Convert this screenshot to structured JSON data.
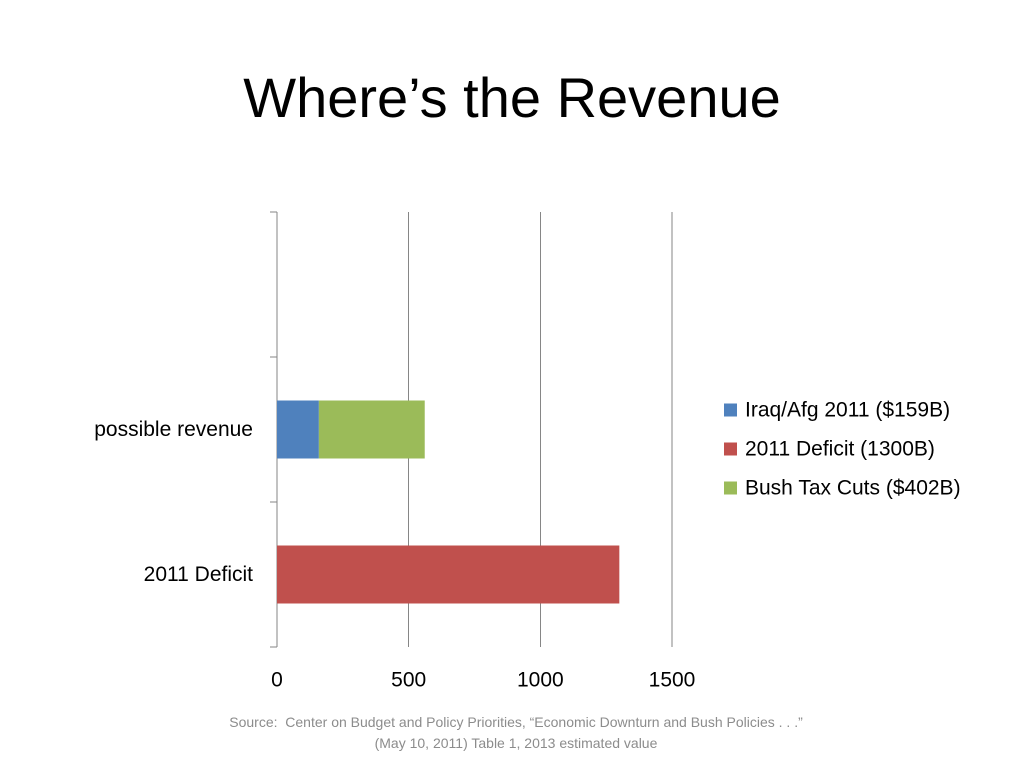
{
  "chart_data": {
    "type": "bar",
    "orientation": "horizontal",
    "stacked": true,
    "title": "Where’s the Revenue",
    "categories": [
      "2011 Deficit",
      "possible revenue",
      ""
    ],
    "series": [
      {
        "name": "Iraq/Afg 2011 ($159B)",
        "color": "#4F81BD",
        "values": [
          0,
          159,
          0
        ]
      },
      {
        "name": "2011 Deficit (1300B)",
        "color": "#C0504D",
        "values": [
          1300,
          0,
          0
        ]
      },
      {
        "name": "Bush Tax Cuts ($402B)",
        "color": "#9BBB59",
        "values": [
          0,
          402,
          0
        ]
      }
    ],
    "value_axis": {
      "range": [
        0,
        1500
      ],
      "ticks": [
        0,
        500,
        1000,
        1500
      ]
    },
    "grid": true,
    "legend": {
      "position": "right"
    }
  },
  "source": {
    "line1": "Source:  Center on Budget and Policy Priorities, “Economic Downturn and Bush Policies . . .”",
    "line2": "(May 10, 2011) Table 1, 2013 estimated value"
  }
}
